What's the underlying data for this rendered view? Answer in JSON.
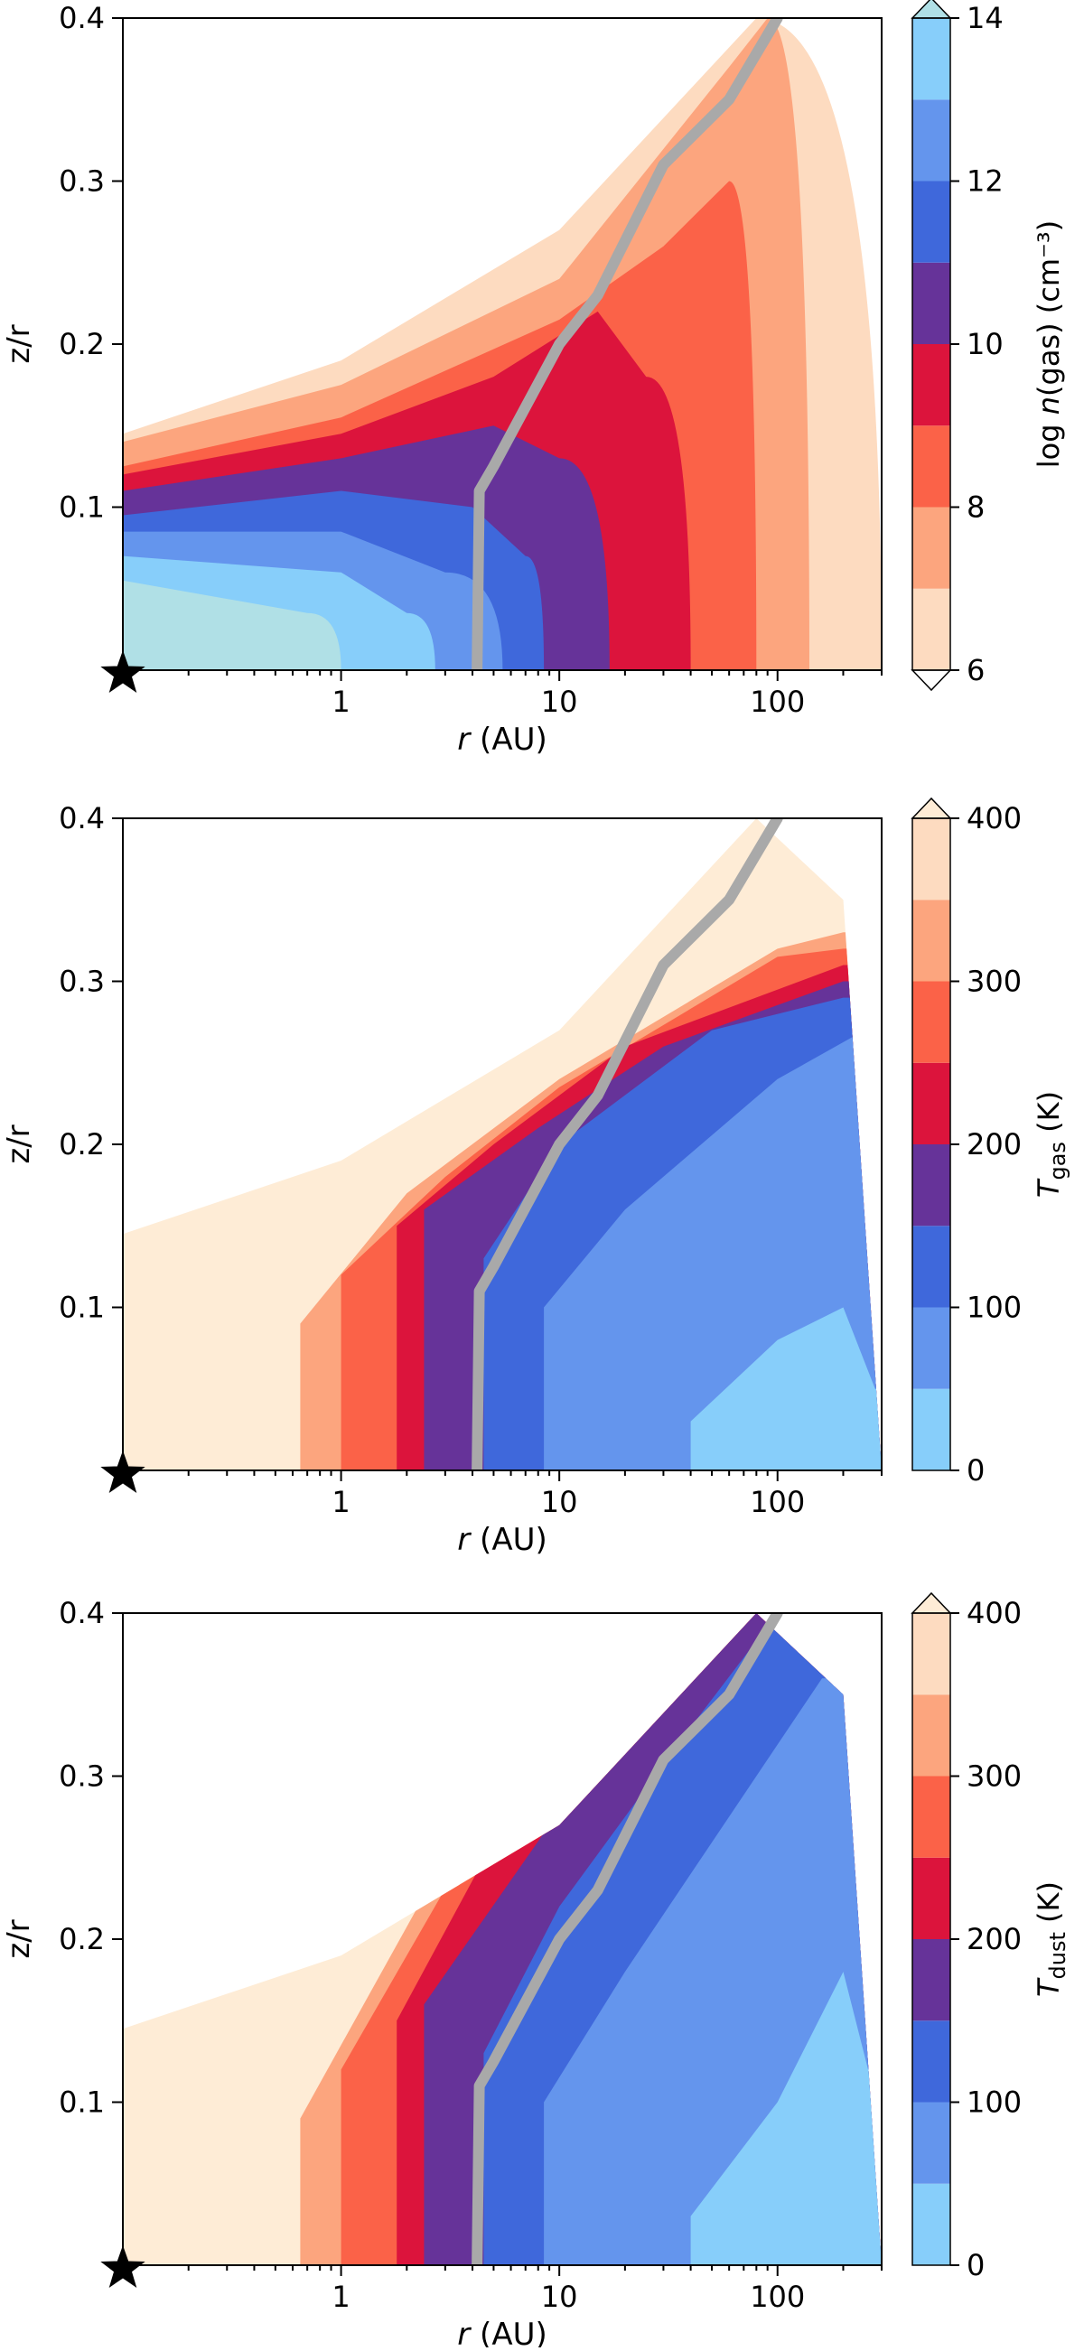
{
  "chart_data": [
    {
      "type": "contour",
      "xlabel": "r (AU)",
      "ylabel": "z/r",
      "xscale": "log",
      "xlim": [
        0.1,
        300
      ],
      "ylim": [
        0,
        0.4
      ],
      "x_ticks": [
        {
          "value": 1,
          "label": "1"
        },
        {
          "value": 10,
          "label": "10"
        },
        {
          "value": 100,
          "label": "100"
        }
      ],
      "y_ticks": [
        {
          "value": 0.1,
          "label": "0.1"
        },
        {
          "value": 0.2,
          "label": "0.2"
        },
        {
          "value": 0.3,
          "label": "0.3"
        },
        {
          "value": 0.4,
          "label": "0.4"
        }
      ],
      "colorbar": {
        "label": "log n(gas) (cm⁻³)",
        "min": 6,
        "max": 14,
        "extend": "both",
        "ticks": [
          {
            "value": 6,
            "label": "6"
          },
          {
            "value": 8,
            "label": "8"
          },
          {
            "value": 10,
            "label": "10"
          },
          {
            "value": 12,
            "label": "12"
          },
          {
            "value": 14,
            "label": "14"
          }
        ],
        "levels": [
          {
            "from": 6,
            "to": 7,
            "color": "#fddbc0"
          },
          {
            "from": 7,
            "to": 8,
            "color": "#fca57e"
          },
          {
            "from": 8,
            "to": 9,
            "color": "#fb6248"
          },
          {
            "from": 9,
            "to": 10,
            "color": "#dc143c"
          },
          {
            "from": 10,
            "to": 11,
            "color": "#663399"
          },
          {
            "from": 11,
            "to": 12,
            "color": "#3f68db"
          },
          {
            "from": 12,
            "to": 13,
            "color": "#6495ed"
          },
          {
            "from": 13,
            "to": 14,
            "color": "#87cefa"
          },
          {
            "from": 14,
            "to": null,
            "color": "#b0e0e6"
          }
        ]
      },
      "regions": [
        {
          "level": 6,
          "outer_r_midplane": 300,
          "surface": [
            [
              0.1,
              0.145
            ],
            [
              1,
              0.19
            ],
            [
              10,
              0.27
            ],
            [
              80,
              0.4
            ]
          ]
        },
        {
          "level": 7,
          "outer_r_midplane": 140,
          "surface": [
            [
              0.1,
              0.14
            ],
            [
              1,
              0.175
            ],
            [
              10,
              0.24
            ],
            [
              60,
              0.37
            ],
            [
              90,
              0.4
            ]
          ]
        },
        {
          "level": 8,
          "outer_r_midplane": 80,
          "surface": [
            [
              0.1,
              0.125
            ],
            [
              1,
              0.155
            ],
            [
              10,
              0.215
            ],
            [
              30,
              0.26
            ],
            [
              60,
              0.3
            ]
          ]
        },
        {
          "level": 9,
          "outer_r_midplane": 40,
          "surface": [
            [
              0.1,
              0.12
            ],
            [
              1,
              0.145
            ],
            [
              5,
              0.18
            ],
            [
              15,
              0.22
            ],
            [
              25,
              0.18
            ]
          ]
        },
        {
          "level": 10,
          "outer_r_midplane": 17,
          "surface": [
            [
              0.1,
              0.11
            ],
            [
              1,
              0.13
            ],
            [
              5,
              0.15
            ],
            [
              10,
              0.13
            ]
          ]
        },
        {
          "level": 11,
          "outer_r_midplane": 8.5,
          "surface": [
            [
              0.1,
              0.095
            ],
            [
              1,
              0.11
            ],
            [
              4,
              0.1
            ],
            [
              7,
              0.07
            ]
          ]
        },
        {
          "level": 12,
          "outer_r_midplane": 5.5,
          "surface": [
            [
              0.1,
              0.085
            ],
            [
              1,
              0.085
            ],
            [
              3,
              0.06
            ]
          ]
        },
        {
          "level": 13,
          "outer_r_midplane": 2.7,
          "surface": [
            [
              0.1,
              0.07
            ],
            [
              1,
              0.06
            ],
            [
              2,
              0.035
            ]
          ]
        },
        {
          "level": 14,
          "outer_r_midplane": 1,
          "surface": [
            [
              0.1,
              0.055
            ],
            [
              0.7,
              0.035
            ]
          ]
        }
      ],
      "gray_line": [
        [
          4.2,
          0
        ],
        [
          4.3,
          0.11
        ],
        [
          5,
          0.125
        ],
        [
          10,
          0.2
        ],
        [
          15,
          0.23
        ],
        [
          30,
          0.31
        ],
        [
          60,
          0.35
        ],
        [
          100,
          0.4
        ]
      ]
    },
    {
      "type": "contour",
      "xlabel": "r (AU)",
      "ylabel": "z/r",
      "xscale": "log",
      "xlim": [
        0.1,
        300
      ],
      "ylim": [
        0,
        0.4
      ],
      "x_ticks": [
        {
          "value": 1,
          "label": "1"
        },
        {
          "value": 10,
          "label": "10"
        },
        {
          "value": 100,
          "label": "100"
        }
      ],
      "y_ticks": [
        {
          "value": 0.1,
          "label": "0.1"
        },
        {
          "value": 0.2,
          "label": "0.2"
        },
        {
          "value": 0.3,
          "label": "0.3"
        },
        {
          "value": 0.4,
          "label": "0.4"
        }
      ],
      "colorbar": {
        "label": "T_gas (K)",
        "min": 0,
        "max": 400,
        "extend": "max",
        "ticks": [
          {
            "value": 0,
            "label": "0"
          },
          {
            "value": 100,
            "label": "100"
          },
          {
            "value": 200,
            "label": "200"
          },
          {
            "value": 300,
            "label": "300"
          },
          {
            "value": 400,
            "label": "400"
          }
        ],
        "levels": [
          {
            "from": 0,
            "to": 50,
            "color": "#87cefa"
          },
          {
            "from": 50,
            "to": 100,
            "color": "#6495ed"
          },
          {
            "from": 100,
            "to": 150,
            "color": "#3f68db"
          },
          {
            "from": 150,
            "to": 200,
            "color": "#663399"
          },
          {
            "from": 200,
            "to": 250,
            "color": "#dc143c"
          },
          {
            "from": 250,
            "to": 300,
            "color": "#fb6248"
          },
          {
            "from": 300,
            "to": 350,
            "color": "#fca57e"
          },
          {
            "from": 350,
            "to": 400,
            "color": "#fddbc0"
          },
          {
            "from": 400,
            "to": null,
            "color": "#feecd6"
          }
        ]
      },
      "disk_surface": [
        [
          0.1,
          0.145
        ],
        [
          1,
          0.19
        ],
        [
          10,
          0.27
        ],
        [
          80,
          0.4
        ],
        [
          200,
          0.35
        ],
        [
          300,
          0.0
        ]
      ],
      "regions": [
        {
          "level": 300,
          "inner_r_midplane": 0.65,
          "surface": [
            [
              0.65,
              0.09
            ],
            [
              2,
              0.17
            ],
            [
              10,
              0.24
            ],
            [
              100,
              0.32
            ],
            [
              200,
              0.33
            ]
          ]
        },
        {
          "level": 250,
          "inner_r_midplane": 1.0,
          "surface": [
            [
              1,
              0.12
            ],
            [
              3,
              0.18
            ],
            [
              10,
              0.235
            ],
            [
              100,
              0.315
            ],
            [
              200,
              0.32
            ]
          ]
        },
        {
          "level": 200,
          "inner_r_midplane": 1.8,
          "surface": [
            [
              1.8,
              0.15
            ],
            [
              5,
              0.2
            ],
            [
              20,
              0.26
            ],
            [
              200,
              0.31
            ]
          ]
        },
        {
          "level": 150,
          "inner_r_midplane": 2.4,
          "surface": [
            [
              2.4,
              0.16
            ],
            [
              8,
              0.21
            ],
            [
              30,
              0.26
            ],
            [
              200,
              0.3
            ]
          ]
        },
        {
          "level": 100,
          "inner_r_midplane": 4.5,
          "surface": [
            [
              4.5,
              0.13
            ],
            [
              10,
              0.2
            ],
            [
              50,
              0.27
            ],
            [
              200,
              0.29
            ]
          ]
        },
        {
          "level": 50,
          "inner_r_midplane": 8.5,
          "surface": [
            [
              8.5,
              0.1
            ],
            [
              20,
              0.16
            ],
            [
              100,
              0.24
            ],
            [
              250,
              0.27
            ]
          ]
        },
        {
          "level": 0,
          "inner_r_midplane": 40,
          "surface": [
            [
              40,
              0.03
            ],
            [
              100,
              0.08
            ],
            [
              200,
              0.1
            ],
            [
              280,
              0.05
            ]
          ]
        }
      ],
      "gray_line": [
        [
          4.2,
          0
        ],
        [
          4.3,
          0.11
        ],
        [
          5,
          0.125
        ],
        [
          10,
          0.2
        ],
        [
          15,
          0.23
        ],
        [
          30,
          0.31
        ],
        [
          60,
          0.35
        ],
        [
          100,
          0.4
        ]
      ]
    },
    {
      "type": "contour",
      "xlabel": "r (AU)",
      "ylabel": "z/r",
      "xscale": "log",
      "xlim": [
        0.1,
        300
      ],
      "ylim": [
        0,
        0.4
      ],
      "x_ticks": [
        {
          "value": 1,
          "label": "1"
        },
        {
          "value": 10,
          "label": "10"
        },
        {
          "value": 100,
          "label": "100"
        }
      ],
      "y_ticks": [
        {
          "value": 0.1,
          "label": "0.1"
        },
        {
          "value": 0.2,
          "label": "0.2"
        },
        {
          "value": 0.3,
          "label": "0.3"
        },
        {
          "value": 0.4,
          "label": "0.4"
        }
      ],
      "colorbar": {
        "label": "T_dust (K)",
        "min": 0,
        "max": 400,
        "extend": "max",
        "ticks": [
          {
            "value": 0,
            "label": "0"
          },
          {
            "value": 100,
            "label": "100"
          },
          {
            "value": 200,
            "label": "200"
          },
          {
            "value": 300,
            "label": "300"
          },
          {
            "value": 400,
            "label": "400"
          }
        ],
        "levels": [
          {
            "from": 0,
            "to": 50,
            "color": "#87cefa"
          },
          {
            "from": 50,
            "to": 100,
            "color": "#6495ed"
          },
          {
            "from": 100,
            "to": 150,
            "color": "#3f68db"
          },
          {
            "from": 150,
            "to": 200,
            "color": "#663399"
          },
          {
            "from": 200,
            "to": 250,
            "color": "#dc143c"
          },
          {
            "from": 250,
            "to": 300,
            "color": "#fb6248"
          },
          {
            "from": 300,
            "to": 350,
            "color": "#fca57e"
          },
          {
            "from": 350,
            "to": 400,
            "color": "#fddbc0"
          },
          {
            "from": 400,
            "to": null,
            "color": "#feecd6"
          }
        ]
      },
      "disk_surface": [
        [
          0.1,
          0.145
        ],
        [
          1,
          0.19
        ],
        [
          10,
          0.27
        ],
        [
          80,
          0.4
        ],
        [
          200,
          0.35
        ],
        [
          300,
          0.0
        ]
      ],
      "regions": [
        {
          "level": 300,
          "inner_r_midplane": 0.65,
          "surface": [
            [
              0.65,
              0.09
            ],
            [
              3,
              0.25
            ],
            [
              10,
              0.35
            ],
            [
              20,
              0.4
            ]
          ]
        },
        {
          "level": 250,
          "inner_r_midplane": 1.0,
          "surface": [
            [
              1,
              0.12
            ],
            [
              4,
              0.26
            ],
            [
              12,
              0.35
            ],
            [
              25,
              0.4
            ]
          ]
        },
        {
          "level": 200,
          "inner_r_midplane": 1.8,
          "surface": [
            [
              1.8,
              0.15
            ],
            [
              5,
              0.26
            ],
            [
              15,
              0.35
            ],
            [
              35,
              0.4
            ]
          ]
        },
        {
          "level": 150,
          "inner_r_midplane": 2.4,
          "surface": [
            [
              2.4,
              0.16
            ],
            [
              8,
              0.26
            ],
            [
              20,
              0.34
            ],
            [
              55,
              0.4
            ]
          ]
        },
        {
          "level": 100,
          "inner_r_midplane": 4.5,
          "surface": [
            [
              4.5,
              0.13
            ],
            [
              10,
              0.22
            ],
            [
              40,
              0.33
            ],
            [
              100,
              0.4
            ]
          ]
        },
        {
          "level": 50,
          "inner_r_midplane": 8.5,
          "surface": [
            [
              8.5,
              0.1
            ],
            [
              20,
              0.18
            ],
            [
              80,
              0.3
            ],
            [
              160,
              0.36
            ]
          ]
        },
        {
          "level": 0,
          "inner_r_midplane": 40,
          "surface": [
            [
              40,
              0.03
            ],
            [
              100,
              0.1
            ],
            [
              200,
              0.18
            ],
            [
              260,
              0.12
            ]
          ]
        }
      ],
      "gray_line": [
        [
          4.2,
          0
        ],
        [
          4.3,
          0.11
        ],
        [
          5,
          0.125
        ],
        [
          10,
          0.2
        ],
        [
          15,
          0.23
        ],
        [
          30,
          0.31
        ],
        [
          60,
          0.35
        ],
        [
          100,
          0.4
        ]
      ]
    }
  ]
}
